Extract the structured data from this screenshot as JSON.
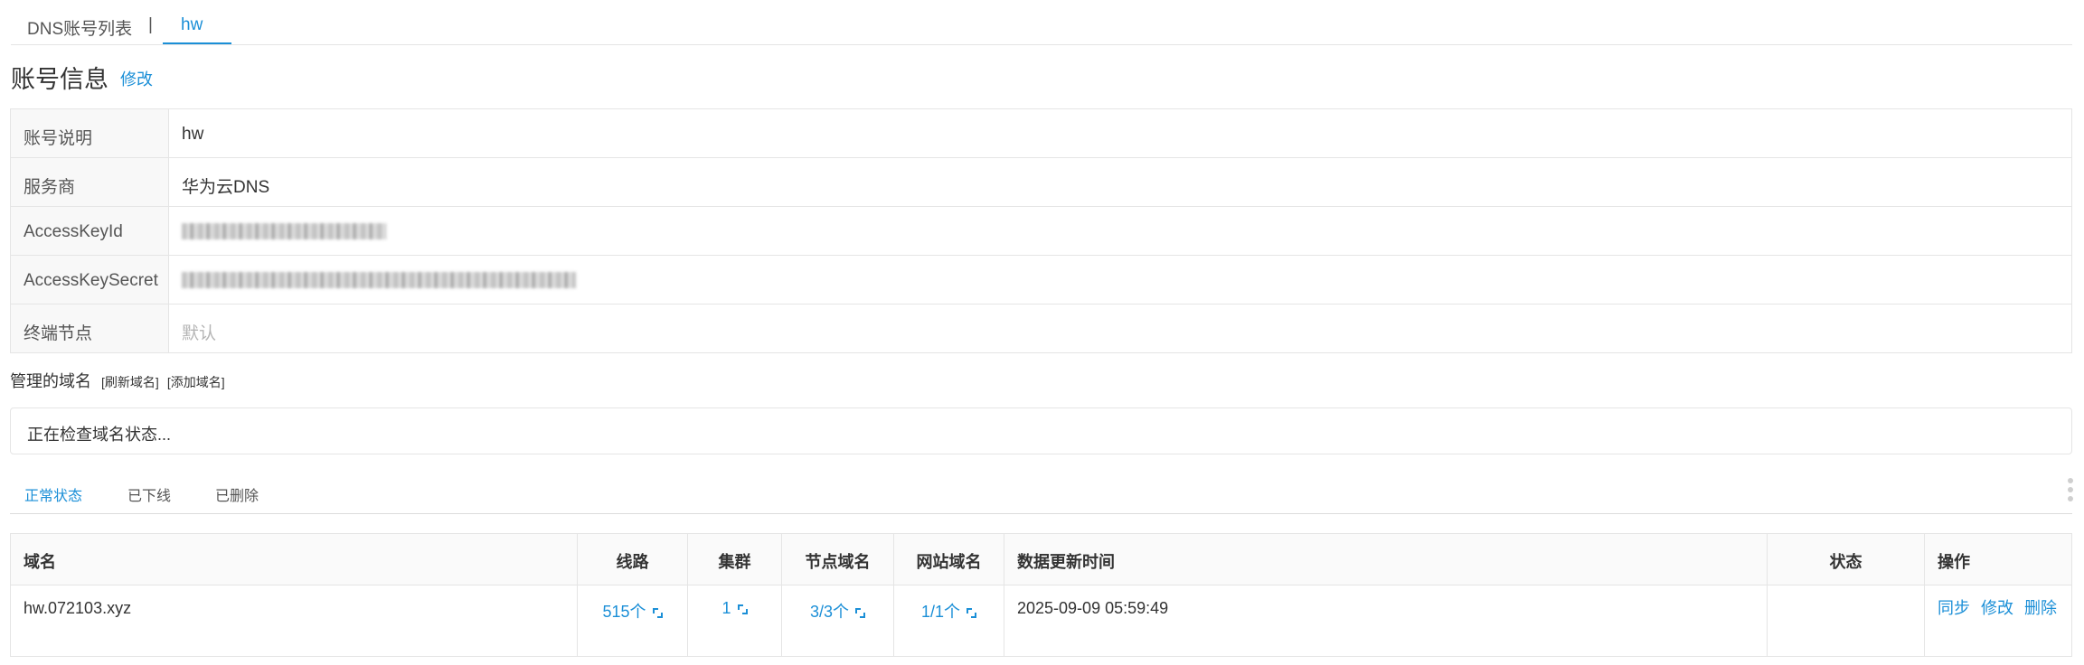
{
  "top_tabs": {
    "list": "DNS账号列表",
    "separator": "|",
    "current": "hw"
  },
  "account": {
    "title": "账号信息",
    "edit_label": "修改",
    "rows": [
      {
        "label": "账号说明",
        "value": "hw"
      },
      {
        "label": "服务商",
        "value": "华为云DNS"
      },
      {
        "label": "AccessKeyId",
        "value": ""
      },
      {
        "label": "AccessKeySecret",
        "value": ""
      },
      {
        "label": "终端节点",
        "value": "默认"
      }
    ]
  },
  "managed": {
    "title": "管理的域名",
    "refresh": "[刷新域名]",
    "add": "[添加域名]",
    "status_text": "正在检查域名状态..."
  },
  "status_tabs": [
    "正常状态",
    "已下线",
    "已删除"
  ],
  "table": {
    "headers": [
      "域名",
      "线路",
      "集群",
      "节点域名",
      "网站域名",
      "数据更新时间",
      "状态",
      "操作"
    ],
    "rows": [
      {
        "domain": "hw.072103.xyz",
        "routes": "515个",
        "clusters": "1",
        "node_domains": "3/3个",
        "site_domains": "1/1个",
        "updated": "2025-09-09 05:59:49",
        "status": "",
        "ops": [
          "同步",
          "修改",
          "删除"
        ]
      }
    ]
  },
  "colors": {
    "accent": "#1b8fd7",
    "border": "#e5e5e5",
    "label_bg": "#f8f8f8"
  },
  "icons": {
    "expand": "expand-icon"
  }
}
